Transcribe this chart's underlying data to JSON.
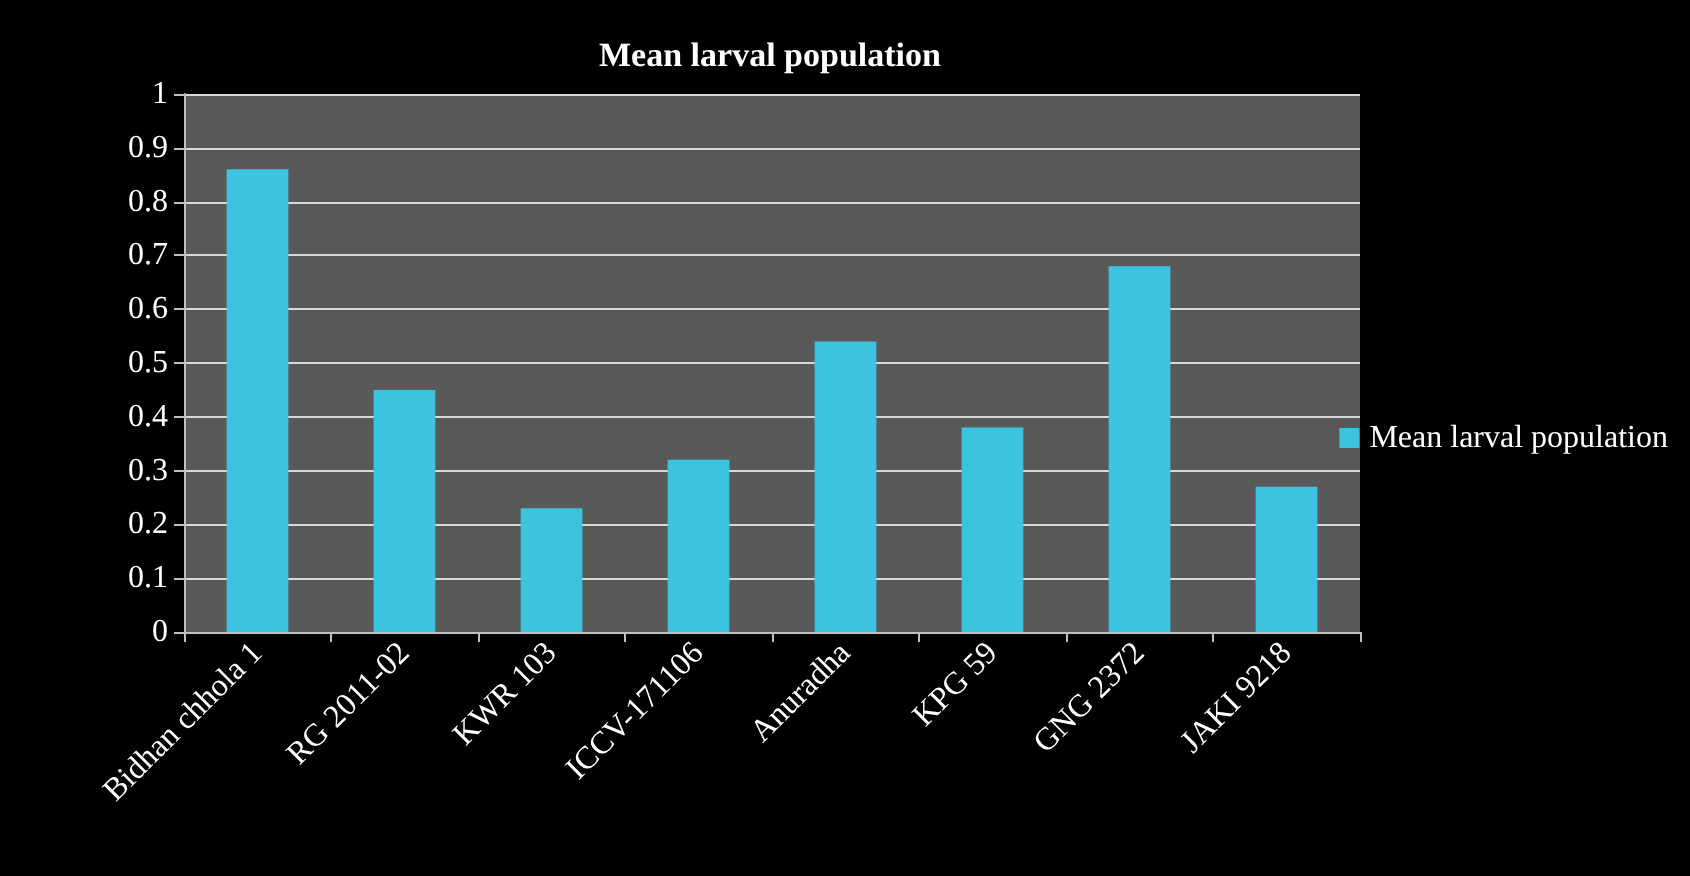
{
  "chart_data": {
    "type": "bar",
    "title": "Mean larval population",
    "categories": [
      "Bidhan chhola 1",
      "RG 2011-02",
      "KWR 103",
      "ICCV-171106",
      "Anuradha",
      "KPG 59",
      "GNG 2372",
      "JAKI 9218"
    ],
    "series": [
      {
        "name": "Mean larval population",
        "color": "#3cc3e0",
        "values": [
          0.86,
          0.45,
          0.23,
          0.32,
          0.54,
          0.38,
          0.68,
          0.27
        ]
      }
    ],
    "ylim": [
      0,
      1
    ],
    "yticks": [
      0,
      0.1,
      0.2,
      0.3,
      0.4,
      0.5,
      0.6,
      0.7,
      0.8,
      0.9,
      1
    ],
    "grid": "y",
    "legend": "right"
  }
}
